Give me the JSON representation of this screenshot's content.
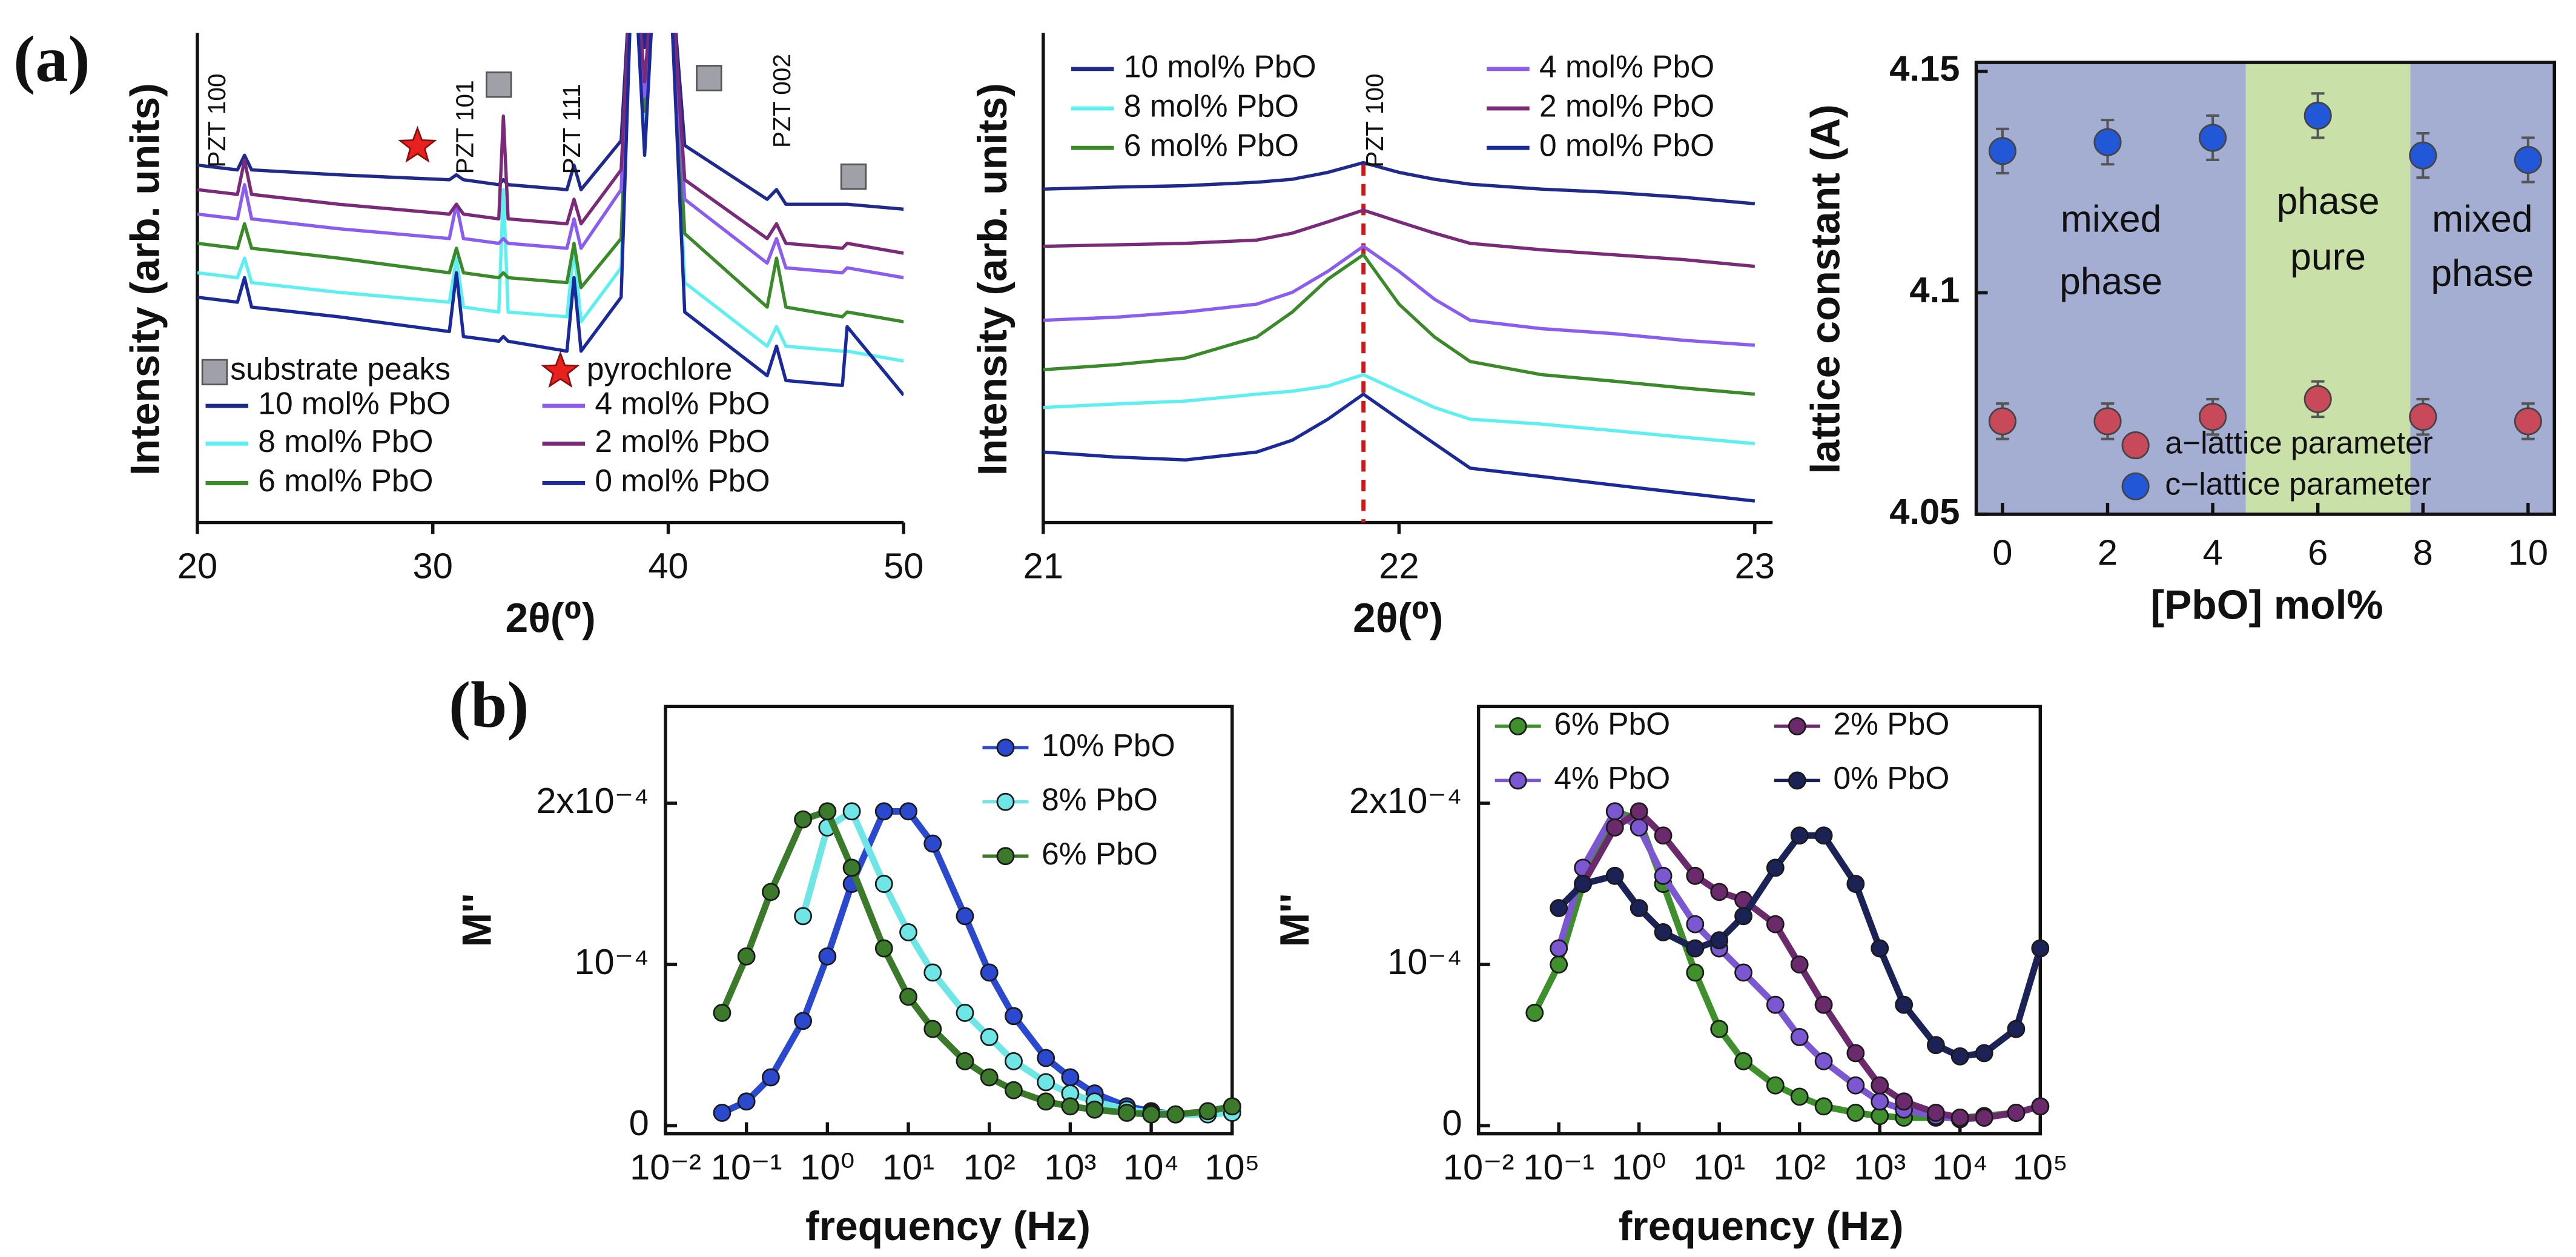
{
  "panel_labels": [
    "(a)",
    "(b)"
  ],
  "chart_data": [
    {
      "type": "line",
      "xlabel": "2θ(⁰)",
      "ylabel": "Intensity (arb. units)",
      "xlim": [
        20,
        50
      ],
      "xticks": [
        20,
        30,
        40,
        50
      ],
      "ylim": [
        0,
        10
      ],
      "annotations": [
        "PZT 100",
        "PZT 101",
        "PZT 111",
        "PZT 002",
        "substrate peaks",
        "pyrochlore"
      ],
      "x": [
        20,
        21.7,
        22,
        22.3,
        26,
        30.7,
        31,
        31.3,
        32.8,
        33,
        33.2,
        35.7,
        36,
        36.3,
        38,
        38.5,
        39,
        39.5,
        40,
        40.7,
        44.2,
        44.6,
        45,
        47.4,
        47.6,
        50
      ],
      "series": [
        {
          "name": "10 mol% PbO",
          "color": "#1f2a8c",
          "values": [
            7.3,
            7.2,
            7.5,
            7.2,
            7.1,
            7.0,
            7.1,
            7.0,
            6.9,
            7.0,
            6.9,
            6.8,
            7.3,
            6.8,
            7.8,
            12,
            9.7,
            12,
            12,
            7.7,
            6.6,
            6.8,
            6.5,
            6.5,
            6.5,
            6.4
          ]
        },
        {
          "name": "8 mol% PbO",
          "color": "#5ef0f0",
          "values": [
            5.1,
            5.0,
            5.4,
            4.9,
            4.7,
            4.5,
            5.4,
            4.4,
            4.3,
            6.8,
            4.3,
            4.2,
            5.6,
            4.1,
            5.2,
            12,
            8,
            12,
            12,
            4.9,
            3.6,
            4.0,
            3.6,
            3.5,
            3.5,
            3.3
          ]
        },
        {
          "name": "6 mol% PbO",
          "color": "#3a8a2a",
          "values": [
            5.7,
            5.6,
            6.1,
            5.6,
            5.4,
            5.1,
            5.6,
            5.1,
            5.0,
            5.1,
            5.0,
            4.9,
            5.7,
            4.8,
            5.8,
            12,
            8.4,
            12,
            12,
            5.9,
            4.4,
            5.4,
            4.4,
            4.2,
            4.3,
            4.1
          ]
        },
        {
          "name": "4 mol% PbO",
          "color": "#8a5cf0",
          "values": [
            6.3,
            6.2,
            6.9,
            6.2,
            6.0,
            5.8,
            6.5,
            5.8,
            5.7,
            5.8,
            5.7,
            5.6,
            6.2,
            5.6,
            6.8,
            12,
            8.7,
            12,
            12,
            6.6,
            5.3,
            5.8,
            5.2,
            5.1,
            5.2,
            5.0
          ]
        },
        {
          "name": "2 mol% PbO",
          "color": "#7a2a78",
          "values": [
            6.8,
            6.7,
            7.4,
            6.7,
            6.5,
            6.3,
            6.5,
            6.3,
            6.2,
            8.3,
            6.2,
            6.1,
            6.6,
            6.1,
            7.2,
            12,
            9,
            12,
            12,
            7,
            5.8,
            6.1,
            5.7,
            5.6,
            5.7,
            5.5
          ]
        },
        {
          "name": "0 mol% PbO",
          "color": "#1a2a9a",
          "values": [
            4.6,
            4.5,
            5.0,
            4.4,
            4.2,
            3.9,
            5.1,
            3.8,
            3.7,
            3.8,
            3.7,
            3.5,
            5.0,
            3.5,
            4.6,
            12,
            7.5,
            12,
            12,
            4.3,
            3.0,
            3.6,
            2.9,
            2.8,
            4.0,
            2.6
          ]
        }
      ]
    },
    {
      "type": "line",
      "xlabel": "2θ(⁰)",
      "ylabel": "Intensity (arb. units)",
      "xlim": [
        21,
        23.05
      ],
      "xticks": [
        21,
        22,
        23
      ],
      "ylim": [
        0,
        10
      ],
      "vline": 21.9,
      "annotations": [
        "PZT 100"
      ],
      "x": [
        21,
        21.2,
        21.4,
        21.6,
        21.7,
        21.8,
        21.9,
        22,
        22.1,
        22.2,
        22.4,
        22.6,
        22.8,
        23
      ],
      "series": [
        {
          "name": "10 mol% PbO",
          "color": "#1f2a8c",
          "values": [
            6.81,
            6.85,
            6.88,
            6.95,
            7.01,
            7.15,
            7.35,
            7.15,
            7.01,
            6.91,
            6.81,
            6.74,
            6.64,
            6.51
          ]
        },
        {
          "name": "8 mol% PbO",
          "color": "#5ef0f0",
          "values": [
            2.35,
            2.42,
            2.48,
            2.62,
            2.68,
            2.79,
            3.02,
            2.68,
            2.35,
            2.11,
            2.01,
            1.88,
            1.74,
            1.61
          ]
        },
        {
          "name": "6 mol% PbO",
          "color": "#3a8a2a",
          "values": [
            3.12,
            3.22,
            3.36,
            3.79,
            4.3,
            4.97,
            5.47,
            4.46,
            3.79,
            3.29,
            3.02,
            2.89,
            2.75,
            2.62
          ]
        },
        {
          "name": "4 mol% PbO",
          "color": "#8a5cf0",
          "values": [
            4.13,
            4.19,
            4.3,
            4.46,
            4.7,
            5.13,
            5.64,
            5.13,
            4.56,
            4.13,
            3.96,
            3.86,
            3.72,
            3.62
          ]
        },
        {
          "name": "2 mol% PbO",
          "color": "#7a2a78",
          "values": [
            5.64,
            5.67,
            5.7,
            5.77,
            5.91,
            6.14,
            6.38,
            6.14,
            5.91,
            5.7,
            5.57,
            5.47,
            5.37,
            5.23
          ]
        },
        {
          "name": "0 mol% PbO",
          "color": "#1a2a9a",
          "values": [
            1.44,
            1.34,
            1.28,
            1.44,
            1.68,
            2.11,
            2.62,
            2.11,
            1.61,
            1.11,
            0.94,
            0.77,
            0.6,
            0.44
          ]
        }
      ]
    },
    {
      "type": "scatter",
      "xlabel": "[PbO] mol%",
      "ylabel": "lattice constant (A)",
      "xlim": [
        -0.5,
        10.5
      ],
      "xticks": [
        0,
        2,
        4,
        6,
        8,
        10
      ],
      "ylim": [
        4.05,
        4.152
      ],
      "yticks": [
        4.05,
        4.1,
        4.15
      ],
      "regions": [
        {
          "label": [
            "mixed",
            "phase"
          ],
          "xlim": [
            -0.5,
            4.63
          ],
          "color": "#a3aed2"
        },
        {
          "label": [
            "phase",
            "pure"
          ],
          "xlim": [
            4.63,
            7.76
          ],
          "color": "#c9e0a8"
        },
        {
          "label": [
            "mixed",
            "phase"
          ],
          "xlim": [
            7.76,
            10.5
          ],
          "color": "#a3aed2"
        }
      ],
      "x": [
        0,
        2,
        4,
        6,
        8,
        10
      ],
      "series": [
        {
          "name": "a−lattice parameter",
          "color": "#c8495a",
          "values": [
            4.071,
            4.071,
            4.072,
            4.076,
            4.072,
            4.071
          ],
          "errors": [
            0.004,
            0.004,
            0.004,
            0.004,
            0.004,
            0.004
          ]
        },
        {
          "name": "c−lattice parameter",
          "color": "#2257d8",
          "values": [
            4.132,
            4.134,
            4.135,
            4.14,
            4.131,
            4.13
          ],
          "errors": [
            0.005,
            0.005,
            0.005,
            0.005,
            0.005,
            0.005
          ]
        }
      ]
    },
    {
      "type": "scatter",
      "xlabel": "frequency (Hz)",
      "ylabel": "M''",
      "xlog": true,
      "xlim": [
        0.01,
        100000
      ],
      "xticks": [
        {
          "value": 0.01,
          "label": "10⁻²"
        },
        {
          "value": 0.1,
          "label": "10⁻¹"
        },
        {
          "value": 1,
          "label": "10⁰"
        },
        {
          "value": 10,
          "label": "10¹"
        },
        {
          "value": 100,
          "label": "10²"
        },
        {
          "value": 1000,
          "label": "10³"
        },
        {
          "value": 10000,
          "label": "10⁴"
        },
        {
          "value": 100000,
          "label": "10⁵"
        }
      ],
      "ylim": [
        -5e-06,
        0.00026
      ],
      "yticks": [
        0,
        {
          "value": 0.0001,
          "label": "10⁻⁴"
        },
        {
          "value": 0.0002,
          "label": "2x10⁻⁴"
        }
      ],
      "x": [
        0.05,
        0.1,
        0.2,
        0.5,
        1,
        2,
        5,
        10,
        20,
        50,
        100,
        200,
        500,
        1000,
        2000,
        5000,
        10000,
        20000,
        50000,
        100000
      ],
      "series": [
        {
          "name": "10% PbO",
          "color": "#2b49cf",
          "values": [
            8e-06,
            1.5e-05,
            3e-05,
            6.5e-05,
            0.000105,
            0.00015,
            0.000195,
            0.000195,
            0.000175,
            0.00013,
            9.5e-05,
            6.8e-05,
            4.2e-05,
            3e-05,
            2e-05,
            1.2e-05,
            9e-06,
            7e-06,
            8e-06,
            1.2e-05
          ]
        },
        {
          "name": "8% PbO",
          "color": "#6fe6e6",
          "values": [
            null,
            null,
            null,
            0.00013,
            0.000185,
            0.000195,
            0.00015,
            0.00012,
            9.5e-05,
            7e-05,
            5.5e-05,
            4e-05,
            2.7e-05,
            2e-05,
            1.5e-05,
            1e-05,
            8e-06,
            7e-06,
            7e-06,
            8e-06
          ]
        },
        {
          "name": "6% PbO",
          "color": "#3b7a2a",
          "values": [
            7e-05,
            0.000105,
            0.000145,
            0.00019,
            0.000195,
            0.00016,
            0.00011,
            8e-05,
            6e-05,
            4e-05,
            3e-05,
            2.2e-05,
            1.5e-05,
            1.2e-05,
            1e-05,
            8e-06,
            7e-06,
            7e-06,
            9e-06,
            1.2e-05
          ]
        }
      ]
    },
    {
      "type": "scatter",
      "xlabel": "frequency (Hz)",
      "ylabel": "M''",
      "xlog": true,
      "xlim": [
        0.01,
        100000
      ],
      "xticks": [
        {
          "value": 0.01,
          "label": "10⁻²"
        },
        {
          "value": 0.1,
          "label": "10⁻¹"
        },
        {
          "value": 1,
          "label": "10⁰"
        },
        {
          "value": 10,
          "label": "10¹"
        },
        {
          "value": 100,
          "label": "10²"
        },
        {
          "value": 1000,
          "label": "10³"
        },
        {
          "value": 10000,
          "label": "10⁴"
        },
        {
          "value": 100000,
          "label": "10⁵"
        }
      ],
      "ylim": [
        -5e-06,
        0.00026
      ],
      "yticks": [
        0,
        {
          "value": 0.0001,
          "label": "10⁻⁴"
        },
        {
          "value": 0.0002,
          "label": "2x10⁻⁴"
        }
      ],
      "x": [
        0.05,
        0.1,
        0.2,
        0.5,
        1,
        2,
        5,
        10,
        20,
        50,
        100,
        200,
        500,
        1000,
        2000,
        5000,
        10000,
        20000,
        50000,
        100000
      ],
      "series": [
        {
          "name": "6% PbO",
          "color": "#3f8f2c",
          "values": [
            7e-05,
            0.0001,
            0.00015,
            0.000195,
            0.00019,
            0.00015,
            9.5e-05,
            6e-05,
            4e-05,
            2.5e-05,
            1.8e-05,
            1.2e-05,
            8e-06,
            6e-06,
            5e-06,
            5e-06,
            5e-06,
            6e-06,
            8e-06,
            1.2e-05
          ]
        },
        {
          "name": "4% PbO",
          "color": "#7b58d2",
          "values": [
            null,
            0.00011,
            0.00016,
            0.000195,
            0.000185,
            0.000155,
            0.000125,
            0.00011,
            9.5e-05,
            7.5e-05,
            5.5e-05,
            4e-05,
            2.5e-05,
            1.5e-05,
            1e-05,
            6e-06,
            4e-06,
            5e-06,
            8e-06,
            1.2e-05
          ]
        },
        {
          "name": "2% PbO",
          "color": "#6a2a6c",
          "values": [
            null,
            null,
            0.00015,
            0.000185,
            0.000195,
            0.00018,
            0.000155,
            0.000145,
            0.00014,
            0.000125,
            0.0001,
            7.5e-05,
            4.5e-05,
            2.5e-05,
            1.5e-05,
            8e-06,
            5e-06,
            5e-06,
            8e-06,
            1.2e-05
          ]
        },
        {
          "name": "0% PbO",
          "color": "#1b2255",
          "values": [
            null,
            0.000135,
            0.00015,
            0.000155,
            0.000135,
            0.00012,
            0.00011,
            0.000115,
            0.00013,
            0.00016,
            0.00018,
            0.00018,
            0.00015,
            0.00011,
            7.5e-05,
            5e-05,
            4.3e-05,
            4.5e-05,
            6e-05,
            0.00011
          ]
        }
      ]
    }
  ]
}
